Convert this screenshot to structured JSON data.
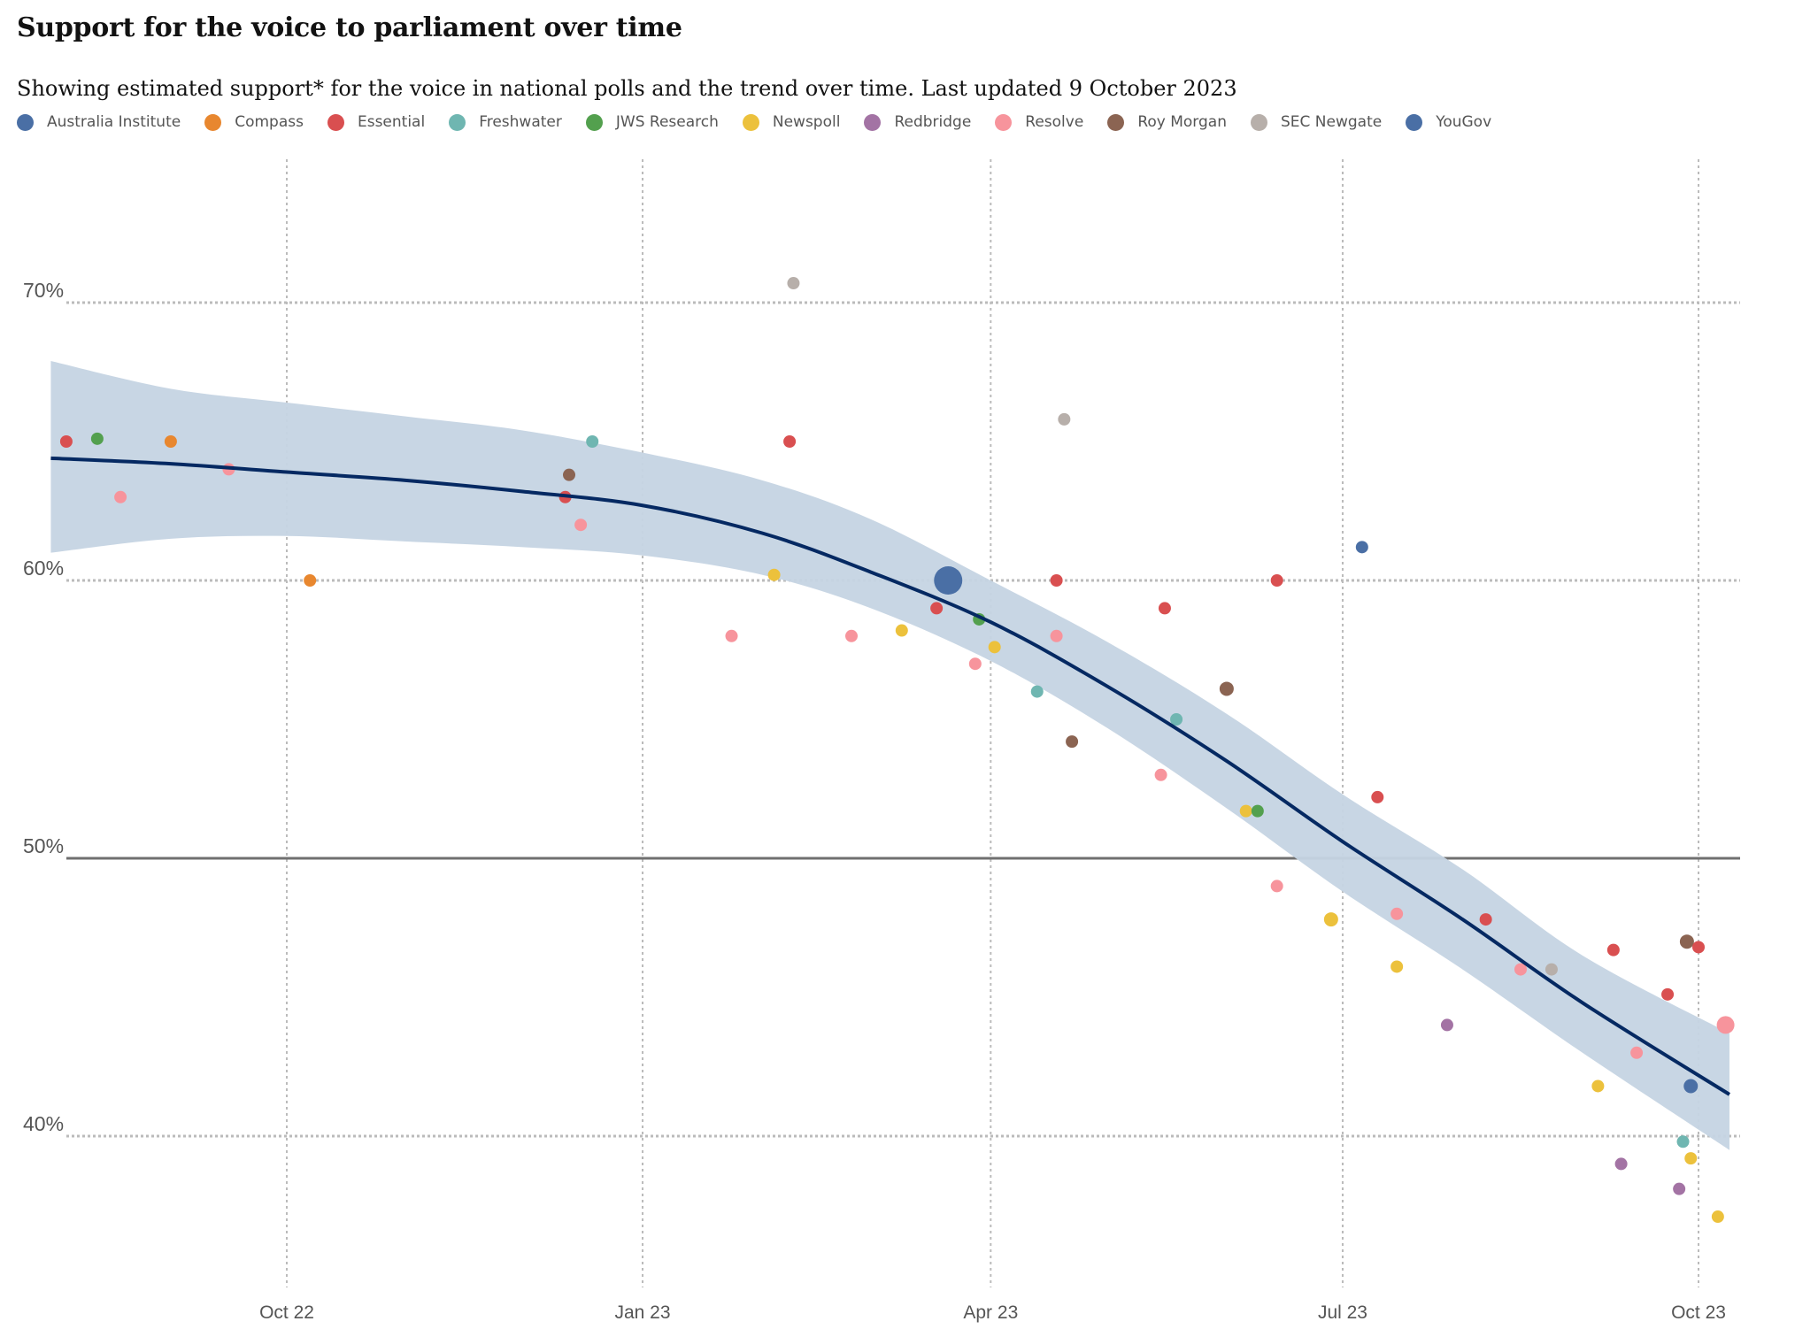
{
  "title": "Support for the voice to parliament over time",
  "subtitle": "Showing estimated support* for the voice in national polls and the trend over time. Last updated 9 October 2023",
  "colors": {
    "trend_line": "#052962",
    "band": "#c5d4e3",
    "grid": "#bbbbbb",
    "midline": "#707070"
  },
  "chart_data": {
    "type": "scatter",
    "ylim": [
      35,
      75
    ],
    "yticks": [
      40,
      50,
      60,
      70
    ],
    "ytick_labels": [
      "40%",
      "50%",
      "60%",
      "70%"
    ],
    "x_range": [
      "2022-08-01",
      "2023-10-15"
    ],
    "xticks": [
      "2022-10-01",
      "2023-01-01",
      "2023-04-01",
      "2023-07-01",
      "2023-10-01"
    ],
    "xtick_labels": [
      "Oct 22",
      "Jan 23",
      "Apr 23",
      "Jul 23",
      "Oct 23"
    ],
    "reference_line": 50,
    "pollsters": [
      {
        "name": "Australia Institute",
        "color": "#4a6fa5"
      },
      {
        "name": "Compass",
        "color": "#e8872f"
      },
      {
        "name": "Essential",
        "color": "#d94f50"
      },
      {
        "name": "Freshwater",
        "color": "#6fb6b1"
      },
      {
        "name": "JWS Research",
        "color": "#53a04e"
      },
      {
        "name": "Newspoll",
        "color": "#ecc13c"
      },
      {
        "name": "Redbridge",
        "color": "#a373a4"
      },
      {
        "name": "Resolve",
        "color": "#f7949c"
      },
      {
        "name": "Roy Morgan",
        "color": "#8b6452"
      },
      {
        "name": "SEC Newgate",
        "color": "#b7afaa"
      },
      {
        "name": "YouGov",
        "color": "#4a6fa5"
      }
    ],
    "points": [
      {
        "date": "2022-08-05",
        "value": 65,
        "pollster": "Essential"
      },
      {
        "date": "2022-08-13",
        "value": 65.1,
        "pollster": "JWS Research"
      },
      {
        "date": "2022-08-19",
        "value": 63,
        "pollster": "Resolve"
      },
      {
        "date": "2022-09-01",
        "value": 65,
        "pollster": "Compass"
      },
      {
        "date": "2022-09-16",
        "value": 64,
        "pollster": "Resolve"
      },
      {
        "date": "2022-10-07",
        "value": 60,
        "pollster": "Compass"
      },
      {
        "date": "2022-12-12",
        "value": 63,
        "pollster": "Essential"
      },
      {
        "date": "2022-12-13",
        "value": 63.8,
        "pollster": "Roy Morgan"
      },
      {
        "date": "2022-12-16",
        "value": 62,
        "pollster": "Resolve"
      },
      {
        "date": "2022-12-19",
        "value": 65,
        "pollster": "Freshwater"
      },
      {
        "date": "2023-01-24",
        "value": 58,
        "pollster": "Resolve"
      },
      {
        "date": "2023-02-04",
        "value": 60.2,
        "pollster": "Newspoll"
      },
      {
        "date": "2023-02-08",
        "value": 65,
        "pollster": "Essential"
      },
      {
        "date": "2023-02-09",
        "value": 70.7,
        "pollster": "SEC Newgate"
      },
      {
        "date": "2023-02-24",
        "value": 58,
        "pollster": "Resolve"
      },
      {
        "date": "2023-03-09",
        "value": 58.2,
        "pollster": "Newspoll"
      },
      {
        "date": "2023-03-18",
        "value": 59,
        "pollster": "Essential"
      },
      {
        "date": "2023-03-21",
        "value": 60,
        "pollster": "Australia Institute",
        "large": true
      },
      {
        "date": "2023-03-29",
        "value": 58.6,
        "pollster": "JWS Research"
      },
      {
        "date": "2023-03-28",
        "value": 57,
        "pollster": "Resolve"
      },
      {
        "date": "2023-04-02",
        "value": 57.6,
        "pollster": "Newspoll"
      },
      {
        "date": "2023-04-13",
        "value": 56,
        "pollster": "Freshwater"
      },
      {
        "date": "2023-04-18",
        "value": 60,
        "pollster": "Essential"
      },
      {
        "date": "2023-04-18",
        "value": 58,
        "pollster": "Resolve"
      },
      {
        "date": "2023-04-20",
        "value": 65.8,
        "pollster": "SEC Newgate"
      },
      {
        "date": "2023-04-22",
        "value": 54.2,
        "pollster": "Roy Morgan"
      },
      {
        "date": "2023-05-15",
        "value": 53,
        "pollster": "Resolve"
      },
      {
        "date": "2023-05-16",
        "value": 59,
        "pollster": "Essential"
      },
      {
        "date": "2023-05-19",
        "value": 55,
        "pollster": "Freshwater"
      },
      {
        "date": "2023-06-01",
        "value": 56.1,
        "pollster": "Roy Morgan",
        "medium": true
      },
      {
        "date": "2023-06-06",
        "value": 51.7,
        "pollster": "Newspoll"
      },
      {
        "date": "2023-06-09",
        "value": 51.7,
        "pollster": "JWS Research"
      },
      {
        "date": "2023-06-14",
        "value": 60,
        "pollster": "Essential"
      },
      {
        "date": "2023-06-14",
        "value": 49,
        "pollster": "Resolve"
      },
      {
        "date": "2023-06-28",
        "value": 47.8,
        "pollster": "Newspoll",
        "medium": true
      },
      {
        "date": "2023-07-06",
        "value": 61.2,
        "pollster": "YouGov"
      },
      {
        "date": "2023-07-10",
        "value": 52.2,
        "pollster": "Essential"
      },
      {
        "date": "2023-07-15",
        "value": 48,
        "pollster": "Resolve"
      },
      {
        "date": "2023-07-15",
        "value": 46.1,
        "pollster": "Newspoll"
      },
      {
        "date": "2023-07-28",
        "value": 44,
        "pollster": "Redbridge"
      },
      {
        "date": "2023-08-07",
        "value": 47.8,
        "pollster": "Essential"
      },
      {
        "date": "2023-08-16",
        "value": 46,
        "pollster": "Resolve"
      },
      {
        "date": "2023-08-24",
        "value": 46,
        "pollster": "SEC Newgate"
      },
      {
        "date": "2023-09-05",
        "value": 41.8,
        "pollster": "Newspoll"
      },
      {
        "date": "2023-09-09",
        "value": 46.7,
        "pollster": "Essential"
      },
      {
        "date": "2023-09-11",
        "value": 39,
        "pollster": "Redbridge"
      },
      {
        "date": "2023-09-15",
        "value": 43,
        "pollster": "Resolve"
      },
      {
        "date": "2023-09-23",
        "value": 45.1,
        "pollster": "Essential"
      },
      {
        "date": "2023-09-26",
        "value": 38.1,
        "pollster": "Redbridge"
      },
      {
        "date": "2023-09-27",
        "value": 39.8,
        "pollster": "Freshwater"
      },
      {
        "date": "2023-09-28",
        "value": 47,
        "pollster": "Roy Morgan",
        "medium": true
      },
      {
        "date": "2023-09-29",
        "value": 39.2,
        "pollster": "Newspoll"
      },
      {
        "date": "2023-09-29",
        "value": 41.8,
        "pollster": "YouGov",
        "medium": true
      },
      {
        "date": "2023-10-01",
        "value": 46.8,
        "pollster": "Essential"
      },
      {
        "date": "2023-10-06",
        "value": 37.1,
        "pollster": "Newspoll"
      },
      {
        "date": "2023-10-08",
        "value": 44,
        "pollster": "Resolve",
        "medium_large": true
      }
    ],
    "trend": [
      {
        "date": "2022-08-01",
        "value": 64.4,
        "lower": 61.0,
        "upper": 67.9
      },
      {
        "date": "2022-09-01",
        "value": 64.2,
        "lower": 61.5,
        "upper": 66.9
      },
      {
        "date": "2022-10-01",
        "value": 63.9,
        "lower": 61.6,
        "upper": 66.4
      },
      {
        "date": "2022-11-01",
        "value": 63.6,
        "lower": 61.4,
        "upper": 65.9
      },
      {
        "date": "2022-12-01",
        "value": 63.2,
        "lower": 61.2,
        "upper": 65.4
      },
      {
        "date": "2023-01-01",
        "value": 62.7,
        "lower": 60.9,
        "upper": 64.6
      },
      {
        "date": "2023-02-01",
        "value": 61.7,
        "lower": 60.2,
        "upper": 63.6
      },
      {
        "date": "2023-03-01",
        "value": 60.3,
        "lower": 59.0,
        "upper": 62.2
      },
      {
        "date": "2023-04-01",
        "value": 58.5,
        "lower": 57.1,
        "upper": 60.0
      },
      {
        "date": "2023-05-01",
        "value": 56.2,
        "lower": 54.7,
        "upper": 57.8
      },
      {
        "date": "2023-06-01",
        "value": 53.5,
        "lower": 51.8,
        "upper": 55.2
      },
      {
        "date": "2023-07-01",
        "value": 50.6,
        "lower": 48.8,
        "upper": 52.3
      },
      {
        "date": "2023-08-01",
        "value": 47.8,
        "lower": 46.0,
        "upper": 49.6
      },
      {
        "date": "2023-09-01",
        "value": 44.8,
        "lower": 43.0,
        "upper": 46.5
      },
      {
        "date": "2023-10-09",
        "value": 41.5,
        "lower": 39.5,
        "upper": 43.7
      }
    ]
  }
}
